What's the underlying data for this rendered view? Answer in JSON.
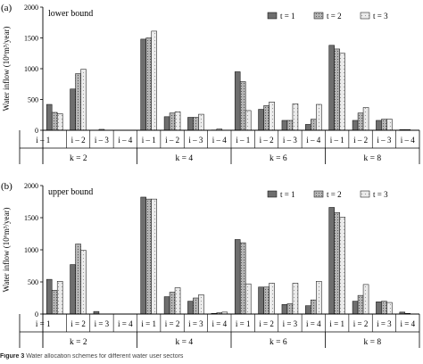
{
  "caption": {
    "figure_label": "Figure 3",
    "text": "Water allocation schemes for different water user sectors"
  },
  "colors": {
    "t1": "#6e6e6e",
    "t2": "#b4b4b4",
    "t3": "#ebebeb",
    "axis": "#000000"
  },
  "chart_data": [
    {
      "type": "bar",
      "panel_label": "(a)",
      "title": "lower bound",
      "ylabel": "Water inflow (10⁶m³/year)",
      "ylim": [
        0,
        2000
      ],
      "yticks": [
        0,
        500,
        1000,
        1500,
        2000
      ],
      "grid": false,
      "legend_position": "top-right",
      "groups": [
        "k = 2",
        "k = 4",
        "k = 6",
        "k = 8"
      ],
      "categories": [
        "i – 1",
        "i – 2",
        "i – 3",
        "i – 4",
        "i – 1",
        "i – 2",
        "i – 3",
        "i – 4",
        "i – 1",
        "i – 2",
        "i – 3",
        "i – 4",
        "i – 1",
        "i – 2",
        "i – 3",
        "i – 4"
      ],
      "series": [
        {
          "name": "t = 1",
          "values": [
            420,
            670,
            0,
            0,
            1480,
            220,
            210,
            5,
            950,
            340,
            160,
            95,
            1380,
            160,
            160,
            10
          ]
        },
        {
          "name": "t = 2",
          "values": [
            290,
            920,
            15,
            0,
            1500,
            280,
            210,
            20,
            790,
            400,
            160,
            180,
            1320,
            280,
            180,
            10
          ]
        },
        {
          "name": "t = 3",
          "values": [
            270,
            990,
            0,
            0,
            1610,
            300,
            260,
            0,
            320,
            460,
            430,
            420,
            1250,
            370,
            180,
            0
          ]
        }
      ]
    },
    {
      "type": "bar",
      "panel_label": "(b)",
      "title": "upper bound",
      "ylabel": "Water inflow (10⁶m³/year)",
      "ylim": [
        0,
        2000
      ],
      "yticks": [
        0,
        500,
        1000,
        1500,
        2000
      ],
      "grid": false,
      "legend_position": "top-right",
      "groups": [
        "k = 2",
        "k = 4",
        "k = 6",
        "k = 8"
      ],
      "categories": [
        "i = 1",
        "i = 2",
        "i = 3",
        "i = 4",
        "i = 1",
        "i = 2",
        "i = 3",
        "i = 4",
        "i = 1",
        "i = 2",
        "i = 3",
        "i = 4",
        "i = 1",
        "i = 2",
        "i = 3",
        "i = 4"
      ],
      "series": [
        {
          "name": "t = 1",
          "values": [
            540,
            770,
            40,
            0,
            1820,
            270,
            200,
            10,
            1160,
            420,
            150,
            130,
            1660,
            200,
            190,
            30
          ]
        },
        {
          "name": "t = 2",
          "values": [
            370,
            1090,
            0,
            0,
            1790,
            340,
            250,
            20,
            1110,
            420,
            160,
            220,
            1580,
            290,
            200,
            10
          ]
        },
        {
          "name": "t = 3",
          "values": [
            510,
            990,
            0,
            0,
            1790,
            410,
            300,
            30,
            470,
            480,
            480,
            510,
            1510,
            460,
            180,
            0
          ]
        }
      ]
    }
  ]
}
